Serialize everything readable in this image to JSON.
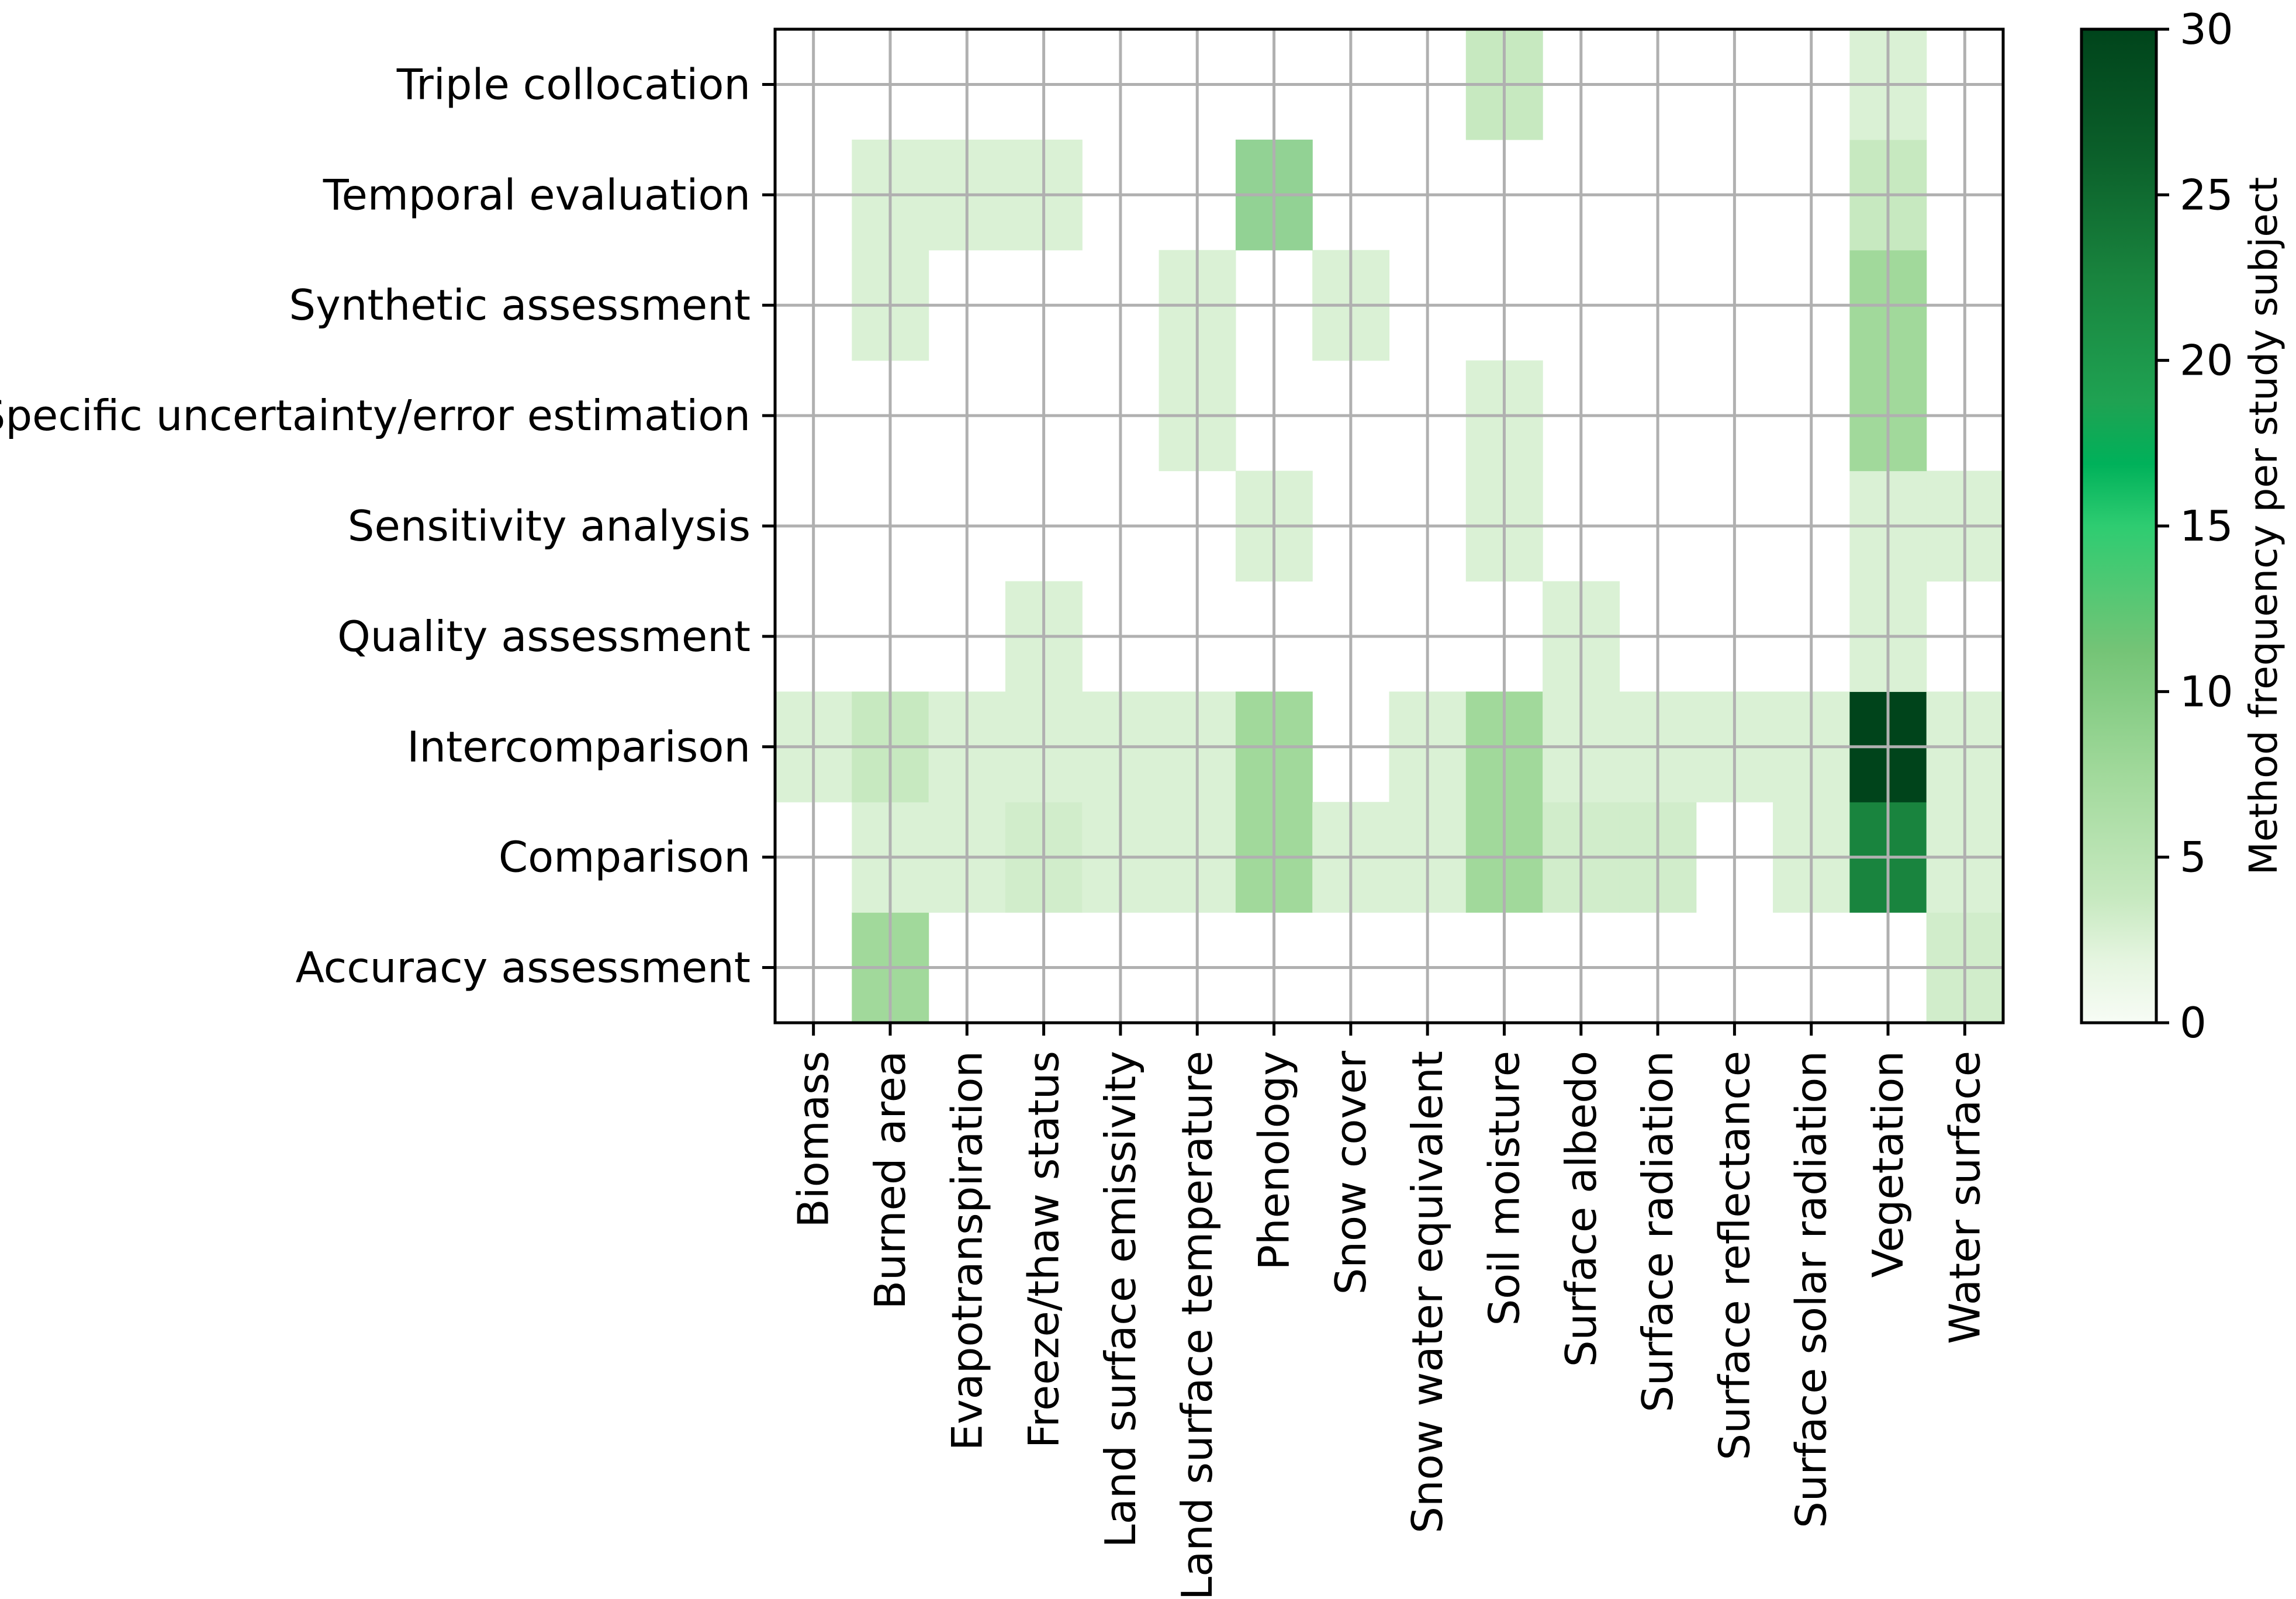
{
  "chart_data": {
    "type": "heatmap",
    "title": "",
    "xlabel": "",
    "ylabel": "",
    "colorbar_label": "Method frequency per study subject",
    "colormap": "Greens",
    "vmin": 0,
    "vmax": 30,
    "colorbar_ticks": [
      "0",
      "5",
      "10",
      "15",
      "20",
      "25",
      "30"
    ],
    "rows": [
      "Accuracy assessment",
      "Comparison",
      "Intercomparison",
      "Quality assessment",
      "Sensitivity analysis",
      "Specific uncertainty/error estimation",
      "Synthetic assessment",
      "Temporal evaluation",
      "Triple collocation"
    ],
    "columns": [
      "Biomass",
      "Burned area",
      "Evapotranspiration",
      "Freeze/thaw status",
      "Land surface emissivity",
      "Land surface temperature",
      "Phenology",
      "Snow cover",
      "Snow water equivalent",
      "Soil moisture",
      "Surface albedo",
      "Surface radiation",
      "Surface reflectance",
      "Surface solar radiation",
      "Vegetation",
      "Water surface"
    ],
    "values": [
      [
        0,
        6,
        0,
        0,
        0,
        0,
        0,
        0,
        0,
        0,
        0,
        0,
        0,
        0,
        0,
        3
      ],
      [
        0,
        2,
        2,
        3,
        2,
        2,
        6,
        2,
        2,
        6,
        3,
        3,
        0,
        2,
        21,
        2
      ],
      [
        2,
        4,
        2,
        2,
        2,
        2,
        6,
        0,
        2,
        6,
        2,
        2,
        2,
        2,
        30,
        2
      ],
      [
        0,
        0,
        0,
        2,
        0,
        0,
        0,
        0,
        0,
        0,
        2,
        0,
        0,
        0,
        2,
        0
      ],
      [
        0,
        0,
        0,
        0,
        0,
        0,
        2,
        0,
        0,
        2,
        0,
        0,
        0,
        0,
        2,
        2
      ],
      [
        0,
        0,
        0,
        0,
        0,
        2,
        0,
        0,
        0,
        2,
        0,
        0,
        0,
        0,
        6,
        0
      ],
      [
        0,
        2,
        0,
        0,
        0,
        2,
        0,
        2,
        0,
        0,
        0,
        0,
        0,
        0,
        6,
        0
      ],
      [
        0,
        2,
        2,
        2,
        0,
        0,
        7,
        0,
        0,
        0,
        0,
        0,
        0,
        0,
        4,
        0
      ],
      [
        0,
        0,
        0,
        0,
        0,
        0,
        0,
        0,
        0,
        4,
        0,
        0,
        0,
        0,
        2,
        0
      ]
    ]
  }
}
